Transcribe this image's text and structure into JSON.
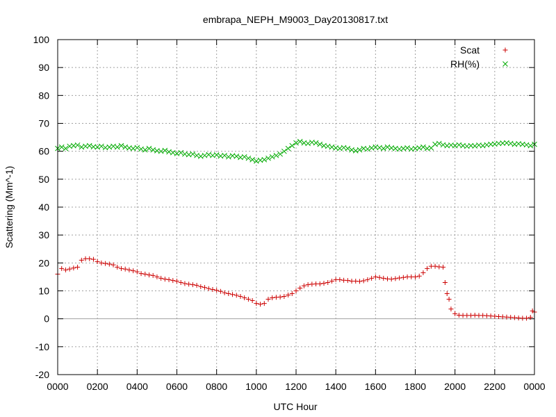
{
  "chart_data": {
    "type": "scatter",
    "title": "embrapa_NEPH_M9003_Day20130817.txt",
    "xlabel": "UTC Hour",
    "ylabel": "Scattering (Mm^-1)",
    "xlim": [
      0,
      24
    ],
    "ylim": [
      -20,
      100
    ],
    "x_ticks": [
      0,
      2,
      4,
      6,
      8,
      10,
      12,
      14,
      16,
      18,
      20,
      22,
      24
    ],
    "x_tick_labels": [
      "0000",
      "0200",
      "0400",
      "0600",
      "0800",
      "1000",
      "1200",
      "1400",
      "1600",
      "1800",
      "2000",
      "2200",
      "0000"
    ],
    "y_ticks": [
      -20,
      -10,
      0,
      10,
      20,
      30,
      40,
      50,
      60,
      70,
      80,
      90,
      100
    ],
    "y_tick_labels": [
      "-20",
      "-10",
      "0",
      "10",
      "20",
      "30",
      "40",
      "50",
      "60",
      "70",
      "80",
      "90",
      "100"
    ],
    "grid": true,
    "zero_line": true,
    "legend_position": "top-right",
    "series": [
      {
        "name": "Scat",
        "marker": "+",
        "color": "#cc0000",
        "x": [
          0.0,
          0.2,
          0.4,
          0.6,
          0.8,
          1.0,
          1.2,
          1.4,
          1.6,
          1.8,
          2.0,
          2.2,
          2.4,
          2.6,
          2.8,
          3.0,
          3.2,
          3.4,
          3.6,
          3.8,
          4.0,
          4.2,
          4.4,
          4.6,
          4.8,
          5.0,
          5.2,
          5.4,
          5.6,
          5.8,
          6.0,
          6.2,
          6.4,
          6.6,
          6.8,
          7.0,
          7.2,
          7.4,
          7.6,
          7.8,
          8.0,
          8.2,
          8.4,
          8.6,
          8.8,
          9.0,
          9.2,
          9.4,
          9.6,
          9.8,
          10.0,
          10.2,
          10.4,
          10.6,
          10.8,
          11.0,
          11.2,
          11.4,
          11.6,
          11.8,
          12.0,
          12.2,
          12.4,
          12.6,
          12.8,
          13.0,
          13.2,
          13.4,
          13.6,
          13.8,
          14.0,
          14.2,
          14.4,
          14.6,
          14.8,
          15.0,
          15.2,
          15.4,
          15.6,
          15.8,
          16.0,
          16.2,
          16.4,
          16.6,
          16.8,
          17.0,
          17.2,
          17.4,
          17.6,
          17.8,
          18.0,
          18.2,
          18.4,
          18.6,
          18.8,
          19.0,
          19.2,
          19.4,
          19.5,
          19.6,
          19.7,
          19.8,
          20.0,
          20.2,
          20.4,
          20.6,
          20.8,
          21.0,
          21.2,
          21.4,
          21.6,
          21.8,
          22.0,
          22.2,
          22.4,
          22.6,
          22.8,
          23.0,
          23.2,
          23.4,
          23.6,
          23.8,
          23.9,
          24.0
        ],
        "y": [
          16.0,
          18.0,
          17.5,
          17.8,
          18.2,
          18.5,
          21.0,
          21.5,
          21.5,
          21.3,
          20.5,
          20.0,
          19.8,
          19.6,
          19.3,
          18.5,
          18.0,
          17.8,
          17.5,
          17.2,
          16.8,
          16.2,
          16.0,
          15.7,
          15.5,
          15.0,
          14.5,
          14.2,
          14.0,
          13.7,
          13.5,
          13.0,
          12.6,
          12.4,
          12.2,
          12.0,
          11.5,
          11.2,
          10.8,
          10.5,
          10.2,
          9.8,
          9.3,
          9.0,
          8.7,
          8.4,
          8.0,
          7.5,
          7.0,
          6.5,
          5.5,
          5.2,
          5.5,
          7.0,
          7.5,
          7.7,
          7.8,
          8.0,
          8.5,
          9.0,
          10.0,
          11.0,
          11.8,
          12.2,
          12.4,
          12.5,
          12.5,
          12.7,
          13.0,
          13.5,
          14.0,
          14.0,
          13.8,
          13.7,
          13.5,
          13.5,
          13.4,
          13.6,
          14.0,
          14.5,
          15.0,
          14.8,
          14.5,
          14.3,
          14.2,
          14.4,
          14.6,
          14.8,
          15.0,
          15.0,
          15.0,
          15.3,
          16.5,
          18.0,
          18.8,
          18.8,
          18.6,
          18.5,
          13.0,
          9.0,
          7.0,
          3.5,
          1.8,
          1.3,
          1.2,
          1.2,
          1.2,
          1.3,
          1.2,
          1.2,
          1.1,
          1.0,
          0.9,
          0.8,
          0.7,
          0.6,
          0.5,
          0.4,
          0.3,
          0.2,
          0.2,
          0.5,
          2.8,
          2.4
        ]
      },
      {
        "name": "RH(%)",
        "marker": "x",
        "color": "#00aa00",
        "x": [
          0.0,
          0.2,
          0.4,
          0.6,
          0.8,
          1.0,
          1.2,
          1.4,
          1.6,
          1.8,
          2.0,
          2.2,
          2.4,
          2.6,
          2.8,
          3.0,
          3.2,
          3.4,
          3.6,
          3.8,
          4.0,
          4.2,
          4.4,
          4.6,
          4.8,
          5.0,
          5.2,
          5.4,
          5.6,
          5.8,
          6.0,
          6.2,
          6.4,
          6.6,
          6.8,
          7.0,
          7.2,
          7.4,
          7.6,
          7.8,
          8.0,
          8.2,
          8.4,
          8.6,
          8.8,
          9.0,
          9.2,
          9.4,
          9.6,
          9.8,
          10.0,
          10.2,
          10.4,
          10.6,
          10.8,
          11.0,
          11.2,
          11.4,
          11.6,
          11.8,
          12.0,
          12.2,
          12.4,
          12.6,
          12.8,
          13.0,
          13.2,
          13.4,
          13.6,
          13.8,
          14.0,
          14.2,
          14.4,
          14.6,
          14.8,
          15.0,
          15.2,
          15.4,
          15.6,
          15.8,
          16.0,
          16.2,
          16.4,
          16.6,
          16.8,
          17.0,
          17.2,
          17.4,
          17.6,
          17.8,
          18.0,
          18.2,
          18.4,
          18.6,
          18.8,
          19.0,
          19.2,
          19.4,
          19.6,
          19.8,
          20.0,
          20.2,
          20.4,
          20.6,
          20.8,
          21.0,
          21.2,
          21.4,
          21.6,
          21.8,
          22.0,
          22.2,
          22.4,
          22.6,
          22.8,
          23.0,
          23.2,
          23.4,
          23.6,
          23.8,
          24.0
        ],
        "y": [
          61.0,
          61.5,
          61.0,
          61.8,
          62.0,
          62.2,
          61.5,
          61.8,
          62.0,
          61.6,
          61.5,
          61.8,
          61.3,
          61.5,
          61.8,
          61.5,
          62.0,
          61.5,
          61.2,
          61.0,
          61.3,
          60.8,
          60.5,
          61.0,
          60.5,
          60.2,
          60.0,
          60.3,
          59.8,
          59.5,
          59.2,
          59.5,
          59.0,
          58.8,
          59.0,
          58.5,
          58.2,
          58.5,
          58.8,
          58.5,
          58.7,
          58.3,
          58.5,
          58.0,
          58.4,
          58.2,
          57.8,
          58.0,
          57.5,
          57.0,
          56.5,
          56.8,
          57.0,
          57.5,
          58.0,
          58.5,
          59.0,
          60.0,
          61.0,
          62.0,
          63.0,
          63.5,
          63.0,
          62.8,
          63.2,
          63.0,
          62.5,
          62.0,
          61.8,
          61.5,
          61.2,
          61.0,
          61.3,
          61.0,
          60.5,
          60.2,
          60.5,
          61.0,
          60.8,
          61.2,
          61.5,
          61.3,
          61.0,
          61.5,
          61.2,
          61.0,
          60.8,
          61.0,
          61.2,
          60.8,
          61.0,
          61.2,
          61.5,
          61.0,
          61.2,
          62.5,
          62.8,
          62.3,
          62.0,
          62.2,
          62.0,
          62.3,
          62.0,
          61.8,
          62.0,
          61.9,
          62.2,
          62.0,
          62.3,
          62.5,
          62.6,
          62.8,
          62.9,
          63.0,
          62.8,
          62.5,
          62.7,
          62.5,
          62.3,
          62.0,
          62.5
        ]
      }
    ]
  }
}
